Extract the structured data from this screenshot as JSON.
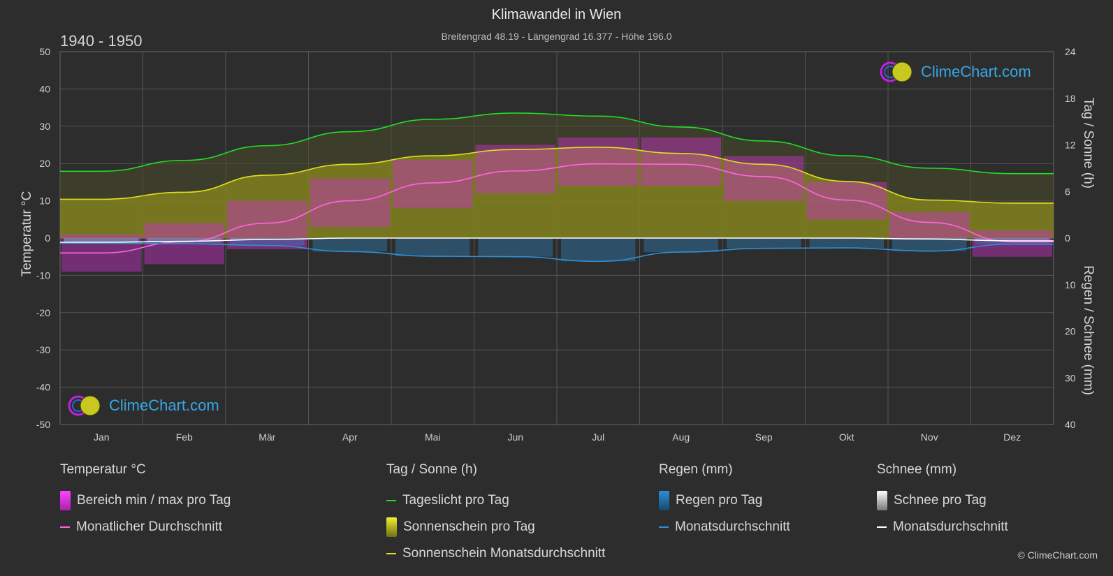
{
  "title": "Klimawandel in Wien",
  "subtitle": "Breitengrad 48.19 - Längengrad 16.377 - Höhe 196.0",
  "period": "1940 - 1950",
  "logo_text": "ClimeChart.com",
  "copyright": "© ClimeChart.com",
  "axes": {
    "left_label": "Temperatur °C",
    "right_top_label": "Tag / Sonne (h)",
    "right_bottom_label": "Regen / Schnee (mm)",
    "left_ticks": [
      50,
      40,
      30,
      20,
      10,
      0,
      -10,
      -20,
      -30,
      -40,
      -50
    ],
    "right_top_ticks": [
      24,
      18,
      12,
      6,
      0
    ],
    "right_bottom_ticks": [
      10,
      20,
      30,
      40
    ]
  },
  "chart_data": {
    "type": "line",
    "months": [
      "Jan",
      "Feb",
      "Mär",
      "Apr",
      "Mai",
      "Jun",
      "Jul",
      "Aug",
      "Sep",
      "Okt",
      "Nov",
      "Dez"
    ],
    "temp_ylim": [
      -50,
      50
    ],
    "sun_ylim": [
      0,
      24
    ],
    "precip_ylim": [
      0,
      40
    ],
    "series": [
      {
        "name": "Tageslicht pro Tag",
        "unit": "h",
        "color": "#22dd22",
        "values": [
          8.6,
          10.0,
          11.9,
          13.7,
          15.3,
          16.1,
          15.7,
          14.3,
          12.5,
          10.6,
          9.0,
          8.3
        ]
      },
      {
        "name": "Sonnenschein Monatsdurchschnitt",
        "unit": "h",
        "color": "#e0e020",
        "values": [
          5.0,
          5.9,
          8.1,
          9.5,
          10.6,
          11.4,
          11.7,
          10.9,
          9.5,
          7.3,
          4.9,
          4.5
        ]
      },
      {
        "name": "Monatlicher Durchschnitt",
        "unit": "°C",
        "color": "#ff66dd",
        "values": [
          -4.0,
          -1.0,
          4.0,
          10.0,
          14.8,
          18.0,
          19.9,
          19.8,
          16.5,
          10.2,
          4.2,
          -1.0
        ]
      },
      {
        "name": "Regen Monatsdurchschnitt",
        "unit": "mm",
        "color": "#2e8fd8",
        "values": [
          1.1,
          1.2,
          1.6,
          2.9,
          3.9,
          4.0,
          5.0,
          3.0,
          2.2,
          2.1,
          2.8,
          1.3
        ]
      },
      {
        "name": "Schnee Monatsdurchschnitt",
        "unit": "mm",
        "color": "#ffffff",
        "values": [
          0.9,
          0.7,
          0.3,
          0.0,
          0.0,
          0.0,
          0.0,
          0.0,
          0.0,
          0.0,
          0.2,
          0.6
        ]
      }
    ],
    "temp_range": {
      "name": "Bereich min / max pro Tag",
      "min": [
        -9,
        -7,
        -3,
        3,
        8,
        12,
        14,
        14,
        10,
        5,
        0,
        -5
      ],
      "max": [
        1,
        4,
        10,
        16,
        21,
        25,
        27,
        27,
        22,
        15,
        7,
        2
      ]
    }
  },
  "legend": {
    "temp": {
      "title": "Temperatur °C",
      "items": [
        "Bereich min / max pro Tag",
        "Monatlicher Durchschnitt"
      ]
    },
    "sun": {
      "title": "Tag / Sonne (h)",
      "items": [
        "Tageslicht pro Tag",
        "Sonnenschein pro Tag",
        "Sonnenschein Monatsdurchschnitt"
      ]
    },
    "rain": {
      "title": "Regen (mm)",
      "items": [
        "Regen pro Tag",
        "Monatsdurchschnitt"
      ]
    },
    "snow": {
      "title": "Schnee (mm)",
      "items": [
        "Schnee pro Tag",
        "Monatsdurchschnitt"
      ]
    }
  },
  "colors": {
    "daylight": "#22dd22",
    "sunshine": "#e0e020",
    "sunshine_fill": "#8a8a1e",
    "temp_avg": "#ff66dd",
    "temp_range": "#cc33cc",
    "rain": "#2e8fd8",
    "snow": "#ffffff",
    "snow_bar": "#9a9a9a",
    "logo": "#35a7e6"
  }
}
